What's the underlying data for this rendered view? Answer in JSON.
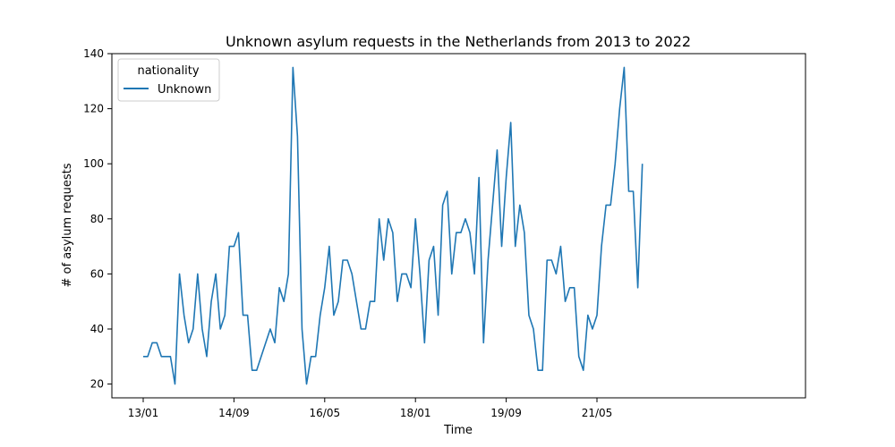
{
  "chart_data": {
    "type": "line",
    "title": "Unknown asylum requests in the Netherlands from 2013 to 2022",
    "xlabel": "Time",
    "ylabel": "# of asylum requests",
    "ylim": [
      15,
      140
    ],
    "yticks": [
      20,
      40,
      60,
      80,
      100,
      120,
      140
    ],
    "xticks": [
      {
        "label": "13/01",
        "index": 0
      },
      {
        "label": "14/09",
        "index": 20
      },
      {
        "label": "16/05",
        "index": 40
      },
      {
        "label": "18/01",
        "index": 60
      },
      {
        "label": "19/09",
        "index": 80
      },
      {
        "label": "21/05",
        "index": 100
      }
    ],
    "grid": false,
    "legend": {
      "title": "nationality",
      "placement": "top-left"
    },
    "series": [
      {
        "name": "Unknown",
        "color": "#1f77b4",
        "values": [
          30,
          30,
          35,
          35,
          30,
          30,
          30,
          20,
          60,
          45,
          35,
          40,
          60,
          40,
          30,
          50,
          60,
          40,
          45,
          70,
          70,
          75,
          45,
          45,
          25,
          25,
          30,
          35,
          40,
          35,
          55,
          50,
          60,
          135,
          110,
          40,
          20,
          30,
          30,
          45,
          55,
          70,
          45,
          50,
          65,
          65,
          60,
          50,
          40,
          40,
          50,
          50,
          80,
          65,
          80,
          75,
          50,
          60,
          60,
          55,
          80,
          60,
          35,
          65,
          70,
          45,
          85,
          90,
          60,
          75,
          75,
          80,
          75,
          60,
          95,
          35,
          65,
          85,
          105,
          70,
          95,
          115,
          70,
          85,
          75,
          45,
          40,
          25,
          25,
          65,
          65,
          60,
          70,
          50,
          55,
          55,
          30,
          25,
          45,
          40,
          45,
          70,
          85,
          85,
          100,
          120,
          135,
          90,
          90,
          55,
          100
        ]
      }
    ]
  }
}
